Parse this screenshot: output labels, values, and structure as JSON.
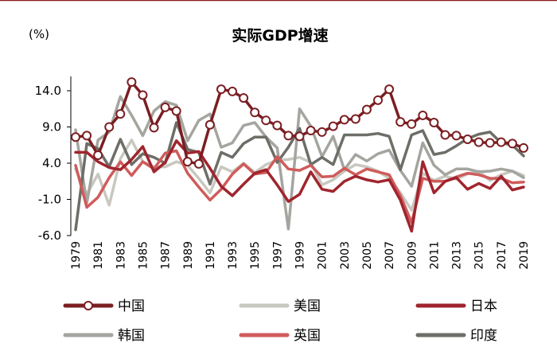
{
  "chart_data": {
    "type": "line",
    "title": "实际GDP增速",
    "unit_label": "(%)",
    "xlabel": "",
    "ylabel": "(%)",
    "ylim": [
      -6.0,
      14.0
    ],
    "y_ticks": [
      "14.0",
      "9.0",
      "4.0",
      "-1.0",
      "-6.0"
    ],
    "y_tick_values": [
      14.0,
      9.0,
      4.0,
      -1.0,
      -6.0
    ],
    "x": [
      1979,
      1980,
      1981,
      1982,
      1983,
      1984,
      1985,
      1986,
      1987,
      1988,
      1989,
      1990,
      1991,
      1992,
      1993,
      1994,
      1995,
      1996,
      1997,
      1998,
      1999,
      2000,
      2001,
      2002,
      2003,
      2004,
      2005,
      2006,
      2007,
      2008,
      2009,
      2010,
      2011,
      2012,
      2013,
      2014,
      2015,
      2016,
      2017,
      2018,
      2019
    ],
    "x_tick_labels": [
      "1979",
      "1981",
      "1983",
      "1985",
      "1987",
      "1989",
      "1991",
      "1993",
      "1995",
      "1997",
      "1999",
      "2001",
      "2003",
      "2005",
      "2007",
      "2009",
      "2011",
      "2013",
      "2015",
      "2017",
      "2019"
    ],
    "legend_position": "bottom",
    "series": [
      {
        "name": "中国",
        "color": "#7b1e22",
        "marker": "circle",
        "values": [
          7.6,
          7.8,
          5.1,
          9.0,
          10.8,
          15.2,
          13.4,
          8.9,
          11.7,
          11.2,
          4.2,
          3.9,
          9.3,
          14.2,
          13.9,
          13.0,
          11.0,
          9.9,
          9.2,
          7.8,
          7.7,
          8.5,
          8.3,
          9.1,
          10.0,
          10.1,
          11.4,
          12.7,
          14.2,
          9.7,
          9.4,
          10.6,
          9.6,
          7.9,
          7.8,
          7.3,
          6.9,
          6.8,
          6.9,
          6.7,
          6.1
        ]
      },
      {
        "name": "美国",
        "color": "#c8c8c0",
        "marker": "none",
        "values": [
          3.2,
          -0.3,
          2.5,
          -1.8,
          4.6,
          7.2,
          4.2,
          3.5,
          3.5,
          4.2,
          3.7,
          1.9,
          -0.1,
          3.5,
          2.8,
          4.0,
          2.7,
          3.8,
          4.4,
          4.5,
          4.8,
          4.1,
          1.0,
          1.7,
          2.9,
          3.8,
          3.5,
          2.9,
          1.9,
          -0.1,
          -2.5,
          2.6,
          1.6,
          2.2,
          1.8,
          2.5,
          2.9,
          1.6,
          2.4,
          2.9,
          2.3
        ]
      },
      {
        "name": "日本",
        "color": "#a0252e",
        "marker": "none",
        "values": [
          5.5,
          5.5,
          4.2,
          3.4,
          3.1,
          4.5,
          6.3,
          2.8,
          4.1,
          7.1,
          5.4,
          5.6,
          3.3,
          0.8,
          -0.5,
          1.1,
          2.6,
          3.1,
          1.0,
          -1.3,
          -0.3,
          2.8,
          0.4,
          0.1,
          1.5,
          2.2,
          1.7,
          1.4,
          1.7,
          -1.1,
          -5.4,
          4.2,
          -0.1,
          1.5,
          2.0,
          0.4,
          1.2,
          0.5,
          2.2,
          0.3,
          0.7
        ]
      },
      {
        "name": "韩国",
        "color": "#a5a5a0",
        "marker": "none",
        "values": [
          8.6,
          -1.5,
          7.2,
          8.3,
          13.2,
          10.6,
          7.8,
          11.2,
          12.5,
          12.0,
          7.1,
          9.9,
          10.8,
          6.2,
          6.8,
          9.2,
          9.6,
          7.6,
          6.1,
          -5.1,
          11.5,
          9.1,
          4.9,
          7.7,
          3.1,
          5.2,
          4.3,
          5.3,
          5.8,
          3.0,
          0.8,
          6.8,
          3.7,
          2.4,
          3.2,
          3.2,
          2.8,
          2.9,
          3.2,
          2.9,
          2.0
        ]
      },
      {
        "name": "英国",
        "color": "#d05b5b",
        "marker": "none",
        "values": [
          3.7,
          -2.1,
          -0.7,
          2.0,
          4.2,
          2.3,
          4.2,
          3.2,
          5.4,
          5.7,
          2.6,
          0.7,
          -1.1,
          0.4,
          2.5,
          3.9,
          2.5,
          2.7,
          4.9,
          3.2,
          3.0,
          3.7,
          2.1,
          2.2,
          3.3,
          2.4,
          3.2,
          2.8,
          2.4,
          -0.5,
          -4.2,
          1.9,
          1.5,
          1.5,
          2.1,
          2.6,
          2.4,
          1.9,
          1.9,
          1.3,
          1.4
        ]
      },
      {
        "name": "印度",
        "color": "#6e6e68",
        "marker": "none",
        "values": [
          -5.2,
          6.7,
          6.0,
          3.5,
          7.3,
          3.8,
          5.3,
          4.8,
          4.0,
          9.6,
          5.9,
          5.5,
          1.1,
          5.5,
          4.8,
          6.7,
          7.6,
          7.6,
          4.1,
          6.2,
          8.8,
          3.8,
          4.8,
          3.8,
          7.9,
          7.9,
          7.9,
          8.1,
          7.7,
          3.1,
          7.9,
          8.5,
          5.2,
          5.5,
          6.4,
          7.4,
          8.0,
          8.3,
          6.8,
          6.5,
          5.0
        ]
      }
    ]
  }
}
